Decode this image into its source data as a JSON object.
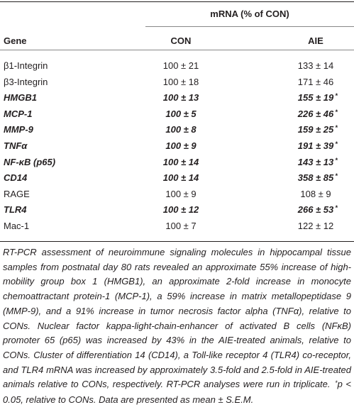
{
  "table": {
    "group_header": "mRNA (% of CON)",
    "columns": [
      "Gene",
      "CON",
      "AIE"
    ],
    "rows": [
      {
        "gene": "β1-Integrin",
        "con": "100 ± 21",
        "aie": "133 ± 14",
        "bold": false
      },
      {
        "gene": "β3-Integrin",
        "con": "100 ± 18",
        "aie": "171 ± 46",
        "bold": false
      },
      {
        "gene": "HMGB1",
        "con": "100 ± 13",
        "aie": "155 ± 19",
        "note": "*",
        "bold": true
      },
      {
        "gene": "MCP-1",
        "con": "100 ± 5",
        "aie": "226 ± 46",
        "note": "*",
        "bold": true
      },
      {
        "gene": "MMP-9",
        "con": "100 ± 8",
        "aie": "159 ± 25",
        "note": "*",
        "bold": true
      },
      {
        "gene": "TNFα",
        "con": "100 ± 9",
        "aie": "191 ± 39",
        "note": "*",
        "bold": true
      },
      {
        "gene": "NF-κB (p65)",
        "con": "100 ± 14",
        "aie": "143 ± 13",
        "note": "*",
        "bold": true
      },
      {
        "gene": "CD14",
        "con": "100 ± 14",
        "aie": "358 ± 85",
        "note": "*",
        "bold": true
      },
      {
        "gene": "RAGE",
        "con": "100 ± 9",
        "aie": "108 ± 9",
        "bold": false
      },
      {
        "gene": "TLR4",
        "con": "100 ± 12",
        "aie": "266 ± 53",
        "note": "*",
        "bold": true
      },
      {
        "gene": "Mac-1",
        "con": "100 ± 7",
        "aie": "122 ± 12",
        "bold": false
      }
    ]
  },
  "caption": {
    "text": "RT-PCR assessment of neuroimmune signaling molecules in hippocampal tissue samples from postnatal day 80 rats revealed an approximate 55% increase of high-mobility group box 1 (HMGB1), an approximate 2-fold increase in monocyte chemoattractant protein-1 (MCP-1), a 59% increase in matrix metallopeptidase 9 (MMP-9), and a 91% increase in tumor necrosis factor alpha (TNFα), relative to CONs. Nuclear factor kappa-light-chain-enhancer of activated B cells (NFκB) promoter 65 (p65) was increased by 43% in the AIE-treated animals, relative to CONs. Cluster of differentiation 14 (CD14), a Toll-like receptor 4 (TLR4) co-receptor, and TLR4 mRNA was increased by approximately 3.5-fold and 2.5-fold in AIE-treated animals relative to CONs, respectively. RT-PCR analyses were run in triplicate.",
    "note": "*",
    "after": "p < 0.05, relative to CONs. Data are presented as mean ± S.E.M."
  }
}
